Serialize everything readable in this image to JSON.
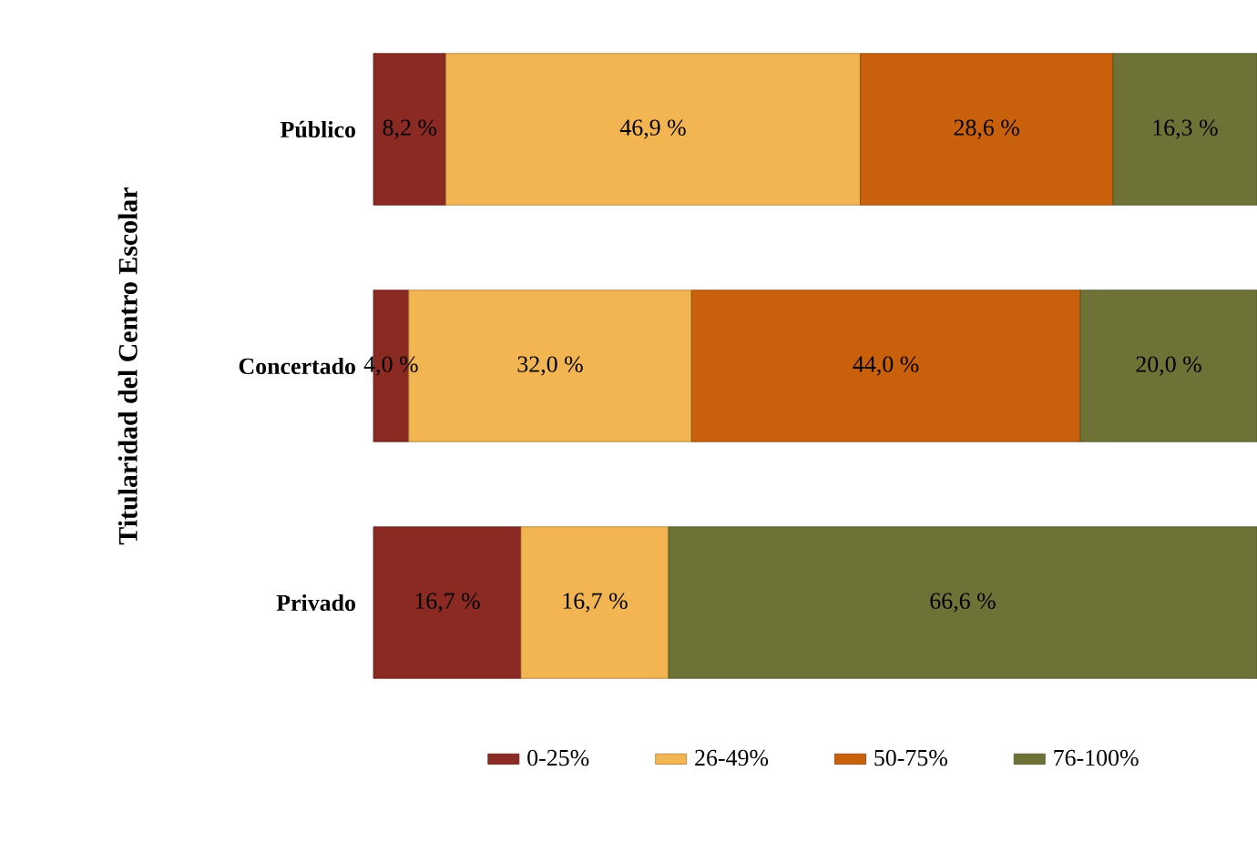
{
  "chart_data": {
    "type": "bar",
    "orientation": "horizontal",
    "stacked": true,
    "ylabel": "Titularidad del  Centro Escolar",
    "categories": [
      "Público",
      "Concertado",
      "Privado"
    ],
    "xlim": [
      0,
      100
    ],
    "tick_labels": "y",
    "legend": "bottom",
    "series": [
      {
        "name": "0-25%",
        "color": "#8b2a22",
        "values": [
          8.2,
          4.0,
          16.7
        ],
        "value_labels": [
          "8,2 %",
          "4,0 %",
          "16,7 %"
        ]
      },
      {
        "name": "26-49%",
        "color": "#f2b552",
        "values": [
          46.9,
          32.0,
          16.7
        ],
        "value_labels": [
          "46,9 %",
          "32,0 %",
          "16,7 %"
        ]
      },
      {
        "name": "50-75%",
        "color": "#c8600c",
        "values": [
          28.6,
          44.0,
          null
        ],
        "value_labels": [
          "28,6 %",
          "44,0 %",
          null
        ]
      },
      {
        "name": "76-100%",
        "color": "#6e7236",
        "values": [
          16.3,
          20.0,
          66.6
        ],
        "value_labels": [
          "16,3 %",
          "20,0 %",
          "66,6 %"
        ]
      }
    ]
  }
}
